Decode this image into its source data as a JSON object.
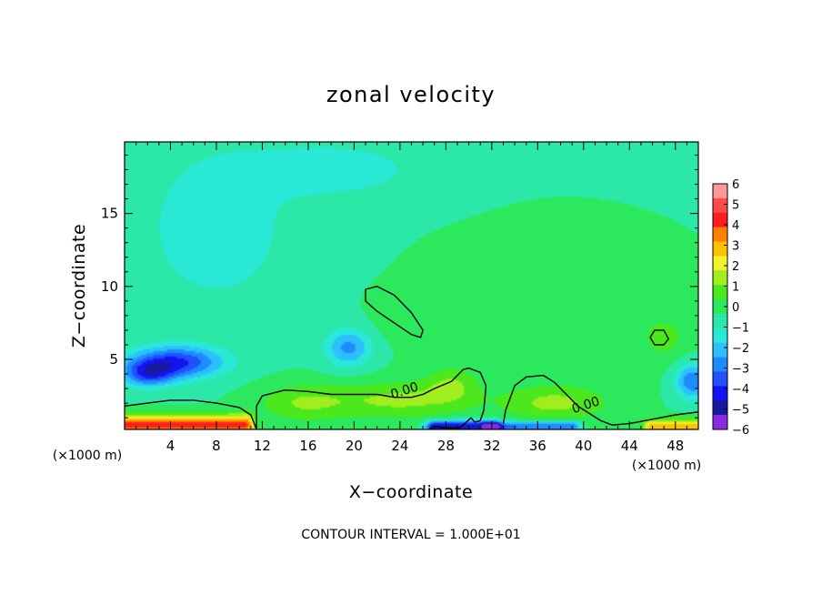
{
  "chart_data": {
    "type": "heatmap",
    "title": "zonal velocity",
    "xlabel": "X−coordinate",
    "ylabel": "Z−coordinate",
    "x_unit_left": "(×1000 m)",
    "x_unit_right": "(×1000 m)",
    "xlim": [
      0,
      50
    ],
    "ylim": [
      0.2,
      19.9
    ],
    "x_ticks": [
      4,
      8,
      12,
      16,
      20,
      24,
      28,
      32,
      36,
      40,
      44,
      48
    ],
    "y_ticks": [
      5,
      10,
      15
    ],
    "colorbar": {
      "range": [
        -6,
        6
      ],
      "labels": [
        "6",
        "5",
        "4",
        "3",
        "2",
        "1",
        "0",
        "−1",
        "−2",
        "−3",
        "−4",
        "−5",
        "−6"
      ],
      "colors": [
        "#ff9999",
        "#ff4a4a",
        "#ff1f1f",
        "#ff7f00",
        "#ffc000",
        "#f2f22a",
        "#a0ee1e",
        "#4ae81c",
        "#2ce85c",
        "#2be8a8",
        "#2ae8d6",
        "#2cc0ff",
        "#1e8cff",
        "#2050ff",
        "#1414f0",
        "#1a1aa0",
        "#8a2be2"
      ]
    },
    "background_value": -0.4,
    "features": [
      {
        "kind": "blob",
        "x": 4.5,
        "z": 4.8,
        "rx": 4.0,
        "rz": 1.1,
        "value": -3.6
      },
      {
        "kind": "blob",
        "x": 2.0,
        "z": 4.0,
        "rx": 2.2,
        "rz": 0.9,
        "value": -2.8
      },
      {
        "kind": "blob",
        "x": 19.5,
        "z": 5.8,
        "rx": 2.0,
        "rz": 1.3,
        "value": -2.3
      },
      {
        "kind": "blob",
        "x": 8.0,
        "z": 14.0,
        "rx": 6.0,
        "rz": 5.0,
        "value": -1.3
      },
      {
        "kind": "blob",
        "x": 18.0,
        "z": 18.0,
        "rx": 8.0,
        "rz": 2.0,
        "value": -1.1
      },
      {
        "kind": "blob",
        "x": 38.0,
        "z": 8.0,
        "rx": 12.0,
        "rz": 6.0,
        "value": 0.3
      },
      {
        "kind": "blob",
        "x": 47.0,
        "z": 6.5,
        "rx": 2.0,
        "rz": 1.5,
        "value": 0.9
      },
      {
        "kind": "blob",
        "x": 49.5,
        "z": 3.5,
        "rx": 1.5,
        "rz": 1.2,
        "value": -2.8
      },
      {
        "kind": "blob",
        "x": 24.0,
        "z": 2.2,
        "rx": 6.0,
        "rz": 1.3,
        "value": 1.6
      },
      {
        "kind": "blob",
        "x": 15.5,
        "z": 2.0,
        "rx": 4.0,
        "rz": 1.3,
        "value": 1.4
      },
      {
        "kind": "blob",
        "x": 37.5,
        "z": 2.0,
        "rx": 4.5,
        "rz": 1.2,
        "value": 1.6
      },
      {
        "kind": "blob",
        "x": 28.5,
        "z": 3.3,
        "rx": 2.2,
        "rz": 1.2,
        "value": 1.2
      },
      {
        "kind": "blob",
        "x": 24.0,
        "z": 8.0,
        "rx": 2.0,
        "rz": 1.5,
        "value": 0.6
      },
      {
        "kind": "layer",
        "x0": 0,
        "x1": 10.5,
        "z": 0.5,
        "rz": 0.7,
        "value": 4.5
      },
      {
        "kind": "layer",
        "x0": 27,
        "x1": 32,
        "z": 0.4,
        "rz": 0.4,
        "value": -4.5
      },
      {
        "kind": "layer",
        "x0": 32,
        "x1": 39,
        "z": 0.4,
        "rz": 0.35,
        "value": -3.0
      },
      {
        "kind": "layer",
        "x0": 46,
        "x1": 50,
        "z": 0.4,
        "rz": 0.5,
        "value": 3.5
      }
    ],
    "contours": [
      {
        "points": [
          [
            0,
            1.8
          ],
          [
            2,
            2.0
          ],
          [
            4,
            2.2
          ],
          [
            6,
            2.2
          ],
          [
            8,
            2.0
          ],
          [
            10,
            1.7
          ],
          [
            11,
            1.2
          ],
          [
            11.5,
            0.2
          ]
        ]
      },
      {
        "points": [
          [
            11.5,
            0.2
          ],
          [
            11.5,
            1.8
          ],
          [
            12,
            2.5
          ],
          [
            14,
            2.9
          ],
          [
            16,
            2.8
          ],
          [
            18,
            2.6
          ],
          [
            20,
            2.6
          ],
          [
            22,
            2.6
          ],
          [
            23.5,
            2.4
          ],
          [
            25,
            2.4
          ],
          [
            26,
            2.6
          ],
          [
            27,
            3.0
          ],
          [
            28.5,
            3.5
          ],
          [
            29,
            3.9
          ],
          [
            29.5,
            4.3
          ],
          [
            30,
            4.4
          ],
          [
            31,
            4.1
          ],
          [
            31.5,
            3.2
          ],
          [
            31.3,
            1.5
          ],
          [
            31,
            0.8
          ],
          [
            30.5,
            0.7
          ],
          [
            30.2,
            1.0
          ],
          [
            29.5,
            0.5
          ],
          [
            29.2,
            0.3
          ],
          [
            28,
            0.3
          ],
          [
            27,
            0.4
          ],
          [
            26.5,
            0.2
          ]
        ]
      },
      {
        "points": [
          [
            33,
            0.6
          ],
          [
            33.2,
            1.5
          ],
          [
            34,
            3.2
          ],
          [
            35,
            3.8
          ],
          [
            36.5,
            3.9
          ],
          [
            37.5,
            3.4
          ],
          [
            38.5,
            2.6
          ],
          [
            39.5,
            1.8
          ],
          [
            40.5,
            1.3
          ],
          [
            41.5,
            0.8
          ],
          [
            42.5,
            0.5
          ],
          [
            44,
            0.6
          ],
          [
            46,
            0.9
          ],
          [
            48,
            1.2
          ],
          [
            50,
            1.4
          ]
        ]
      },
      {
        "points": [
          [
            21,
            9.8
          ],
          [
            21,
            9.0
          ],
          [
            22,
            8.3
          ],
          [
            23.5,
            7.5
          ],
          [
            25,
            6.7
          ],
          [
            25.8,
            6.5
          ],
          [
            26,
            7.0
          ],
          [
            25,
            8.2
          ],
          [
            23.5,
            9.4
          ],
          [
            22,
            10.0
          ],
          [
            21,
            9.8
          ]
        ]
      },
      {
        "points": [
          [
            45.8,
            6.5
          ],
          [
            46.2,
            7.0
          ],
          [
            47,
            7.0
          ],
          [
            47.4,
            6.4
          ],
          [
            47,
            6.0
          ],
          [
            46.2,
            6.0
          ],
          [
            45.8,
            6.5
          ]
        ]
      }
    ],
    "contour_labels": [
      {
        "text": "0.00",
        "x": 24.5,
        "z": 2.6
      },
      {
        "text": "0.00",
        "x": 40.3,
        "z": 1.6
      }
    ],
    "caption": "CONTOUR INTERVAL = 1.000E+01"
  }
}
